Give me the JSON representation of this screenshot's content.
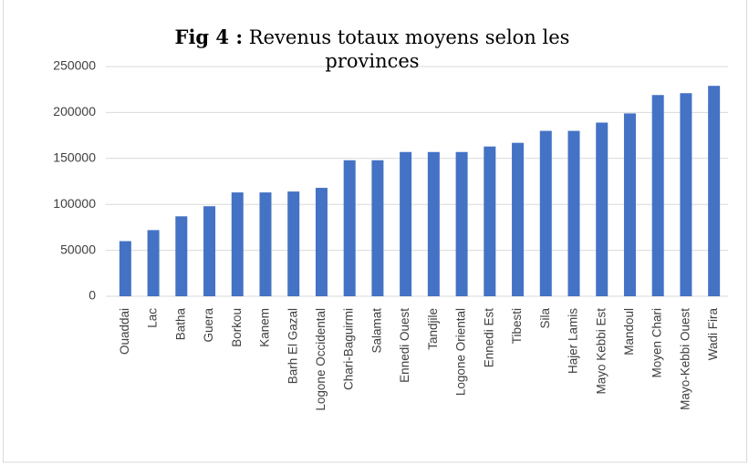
{
  "chart_data": {
    "type": "bar",
    "figure_label": "Fig 4 :",
    "title": "Revenus totaux moyens selon les provinces",
    "categories": [
      "Ouaddai",
      "Lac",
      "Batha",
      "Guera",
      "Borkou",
      "Kanem",
      "Barh El Gazal",
      "Logone Occidental",
      "Chari-Baguirmi",
      "Salamat",
      "Ennedi Ouest",
      "Tandjile",
      "Logone Oriental",
      "Ennedi Est",
      "Tibesti",
      "Sila",
      "Hajer Lamis",
      "Mayo Kebbi Est",
      "Mandoul",
      "Moyen Chari",
      "Mayo-Kebbi Ouest",
      "Wadi Fira"
    ],
    "values": [
      60000,
      72000,
      87000,
      98000,
      113000,
      113000,
      114000,
      118000,
      148000,
      148000,
      157000,
      157000,
      157000,
      163000,
      167000,
      180000,
      180000,
      189000,
      199000,
      219000,
      221000,
      229000
    ],
    "color": "#4472c4",
    "ylim": [
      0,
      250000
    ],
    "yticks": [
      0,
      50000,
      100000,
      150000,
      200000,
      250000
    ],
    "grid": true
  }
}
